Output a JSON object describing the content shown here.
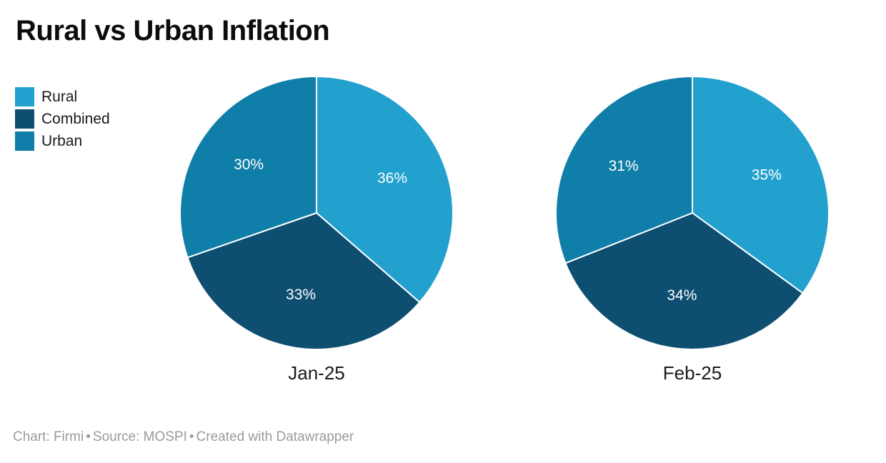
{
  "title": "Rural vs Urban Inflation",
  "legend": {
    "items": [
      {
        "label": "Rural",
        "color": "#22a0ce"
      },
      {
        "label": "Combined",
        "color": "#0d4e71"
      },
      {
        "label": "Urban",
        "color": "#0f7ea8"
      }
    ]
  },
  "chart_data": {
    "type": "pie",
    "title": "Rural vs Urban Inflation",
    "legend_position": "top-left",
    "start_angle": "top",
    "direction": "clockwise",
    "categories": [
      "Rural",
      "Combined",
      "Urban"
    ],
    "colors": {
      "Rural": "#22a0ce",
      "Combined": "#0d4e71",
      "Urban": "#0f7ea8"
    },
    "slice_label_color": "#ffffff",
    "pies": [
      {
        "label": "Jan-25",
        "slices": [
          {
            "name": "Rural",
            "value": 36,
            "display": "36%"
          },
          {
            "name": "Combined",
            "value": 33,
            "display": "33%"
          },
          {
            "name": "Urban",
            "value": 30,
            "display": "30%"
          }
        ]
      },
      {
        "label": "Feb-25",
        "slices": [
          {
            "name": "Rural",
            "value": 35,
            "display": "35%"
          },
          {
            "name": "Combined",
            "value": 34,
            "display": "34%"
          },
          {
            "name": "Urban",
            "value": 31,
            "display": "31%"
          }
        ]
      }
    ]
  },
  "footer": {
    "chart_credit": "Chart: Firmi",
    "source_credit": "Source: MOSPI",
    "created_with": "Created with Datawrapper",
    "separator": "•"
  }
}
